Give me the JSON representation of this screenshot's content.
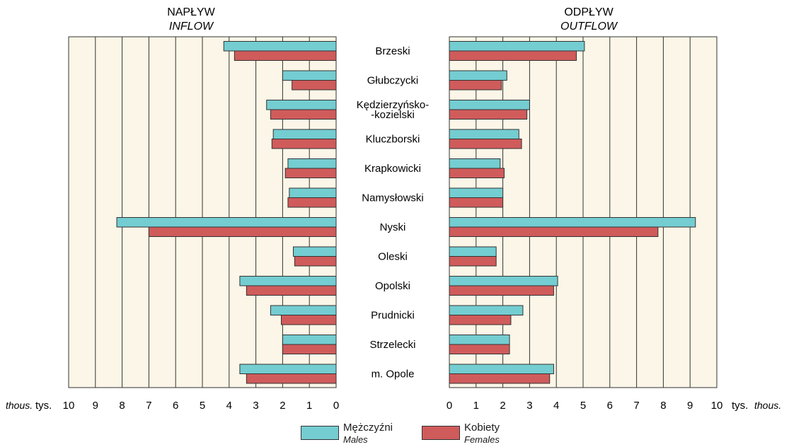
{
  "chart_data": {
    "type": "bar",
    "unit_label": "tys.",
    "unit_label_en": "thous.",
    "categories": [
      "Brzeski",
      "Głubczycki",
      "Kędzierzyńsko-\n-kozielski",
      "Kluczborski",
      "Krapkowicki",
      "Namysłowski",
      "Nyski",
      "Oleski",
      "Opolski",
      "Prudnicki",
      "Strzelecki",
      "m. Opole"
    ],
    "panels": [
      {
        "title": "NAPŁYW",
        "subtitle": "INFLOW",
        "direction": "left",
        "xlim": [
          0,
          10
        ],
        "ticks": [
          "0",
          "1",
          "2",
          "3",
          "4",
          "5",
          "6",
          "7",
          "8",
          "9",
          "10"
        ],
        "series": [
          {
            "name": "Mężczyźni",
            "values": [
              4.2,
              2.0,
              2.6,
              2.35,
              1.8,
              1.75,
              8.2,
              1.6,
              3.6,
              2.45,
              2.0,
              3.6
            ]
          },
          {
            "name": "Kobiety",
            "values": [
              3.8,
              1.65,
              2.45,
              2.4,
              1.9,
              1.8,
              7.0,
              1.55,
              3.35,
              2.05,
              2.0,
              3.35
            ]
          }
        ]
      },
      {
        "title": "ODPŁYW",
        "subtitle": "OUTFLOW",
        "direction": "right",
        "xlim": [
          0,
          10
        ],
        "ticks": [
          "0",
          "1",
          "2",
          "3",
          "4",
          "5",
          "6",
          "7",
          "8",
          "9",
          "10"
        ],
        "series": [
          {
            "name": "Mężczyźni",
            "values": [
              5.05,
              2.15,
              3.0,
              2.6,
              1.9,
              2.0,
              9.2,
              1.75,
              4.05,
              2.75,
              2.25,
              3.9
            ]
          },
          {
            "name": "Kobiety",
            "values": [
              4.75,
              1.95,
              2.9,
              2.7,
              2.05,
              2.0,
              7.8,
              1.75,
              3.9,
              2.3,
              2.25,
              3.75
            ]
          }
        ]
      }
    ],
    "grid": true,
    "legend_position": "bottom-center"
  },
  "legend": {
    "males": {
      "label": "Mężczyźni",
      "label_en": "Males",
      "color": "#74cdd1"
    },
    "females": {
      "label": "Kobiety",
      "label_en": "Females",
      "color": "#d05b5b"
    }
  },
  "colors": {
    "panel_bg": "#fbf6e7",
    "grid": "#333333"
  }
}
